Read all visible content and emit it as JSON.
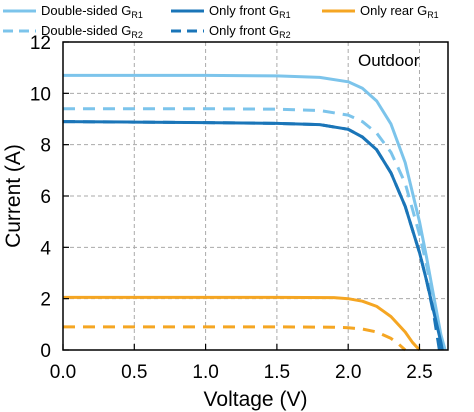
{
  "chart_data": {
    "type": "line",
    "xlabel": "Voltage (V)",
    "ylabel": "Current (A)",
    "xlim": [
      0,
      2.7
    ],
    "ylim": [
      0,
      12
    ],
    "xticks": [
      "0.0",
      "0.5",
      "1.0",
      "1.5",
      "2.0",
      "2.5"
    ],
    "yticks": [
      "0",
      "2",
      "4",
      "6",
      "8",
      "10",
      "12"
    ],
    "grid": true,
    "annotation": "Outdoor",
    "legend": {
      "placement": "top",
      "entries": [
        {
          "prefix": "Double-sided G",
          "sub": "R1"
        },
        {
          "prefix": "Only front G",
          "sub": "R1"
        },
        {
          "prefix": "Only rear G",
          "sub": "R1"
        },
        {
          "prefix": "Double-sided G",
          "sub": "R2"
        },
        {
          "prefix": "Only front G",
          "sub": "R2"
        }
      ]
    },
    "series": [
      {
        "legend_index": 0,
        "color": "#7cc4eb",
        "style": "solid",
        "x": [
          0,
          0.5,
          1.0,
          1.5,
          1.8,
          2.0,
          2.1,
          2.2,
          2.3,
          2.4,
          2.5,
          2.55,
          2.6,
          2.65,
          2.68
        ],
        "y": [
          10.7,
          10.7,
          10.7,
          10.68,
          10.62,
          10.45,
          10.2,
          9.7,
          8.8,
          7.3,
          5.0,
          3.6,
          2.1,
          0.6,
          0
        ]
      },
      {
        "legend_index": 3,
        "color": "#7cc4eb",
        "style": "dashed",
        "x": [
          0,
          0.5,
          1.0,
          1.5,
          1.8,
          2.0,
          2.1,
          2.2,
          2.3,
          2.4,
          2.5,
          2.55,
          2.6,
          2.65,
          2.67
        ],
        "y": [
          9.4,
          9.4,
          9.4,
          9.38,
          9.33,
          9.15,
          8.9,
          8.45,
          7.7,
          6.5,
          4.5,
          3.3,
          1.9,
          0.5,
          0
        ]
      },
      {
        "legend_index": 1,
        "color": "#1a75b8",
        "style": "solid",
        "x": [
          0,
          0.5,
          1.0,
          1.5,
          1.8,
          2.0,
          2.1,
          2.2,
          2.3,
          2.4,
          2.5,
          2.55,
          2.6,
          2.65,
          2.66
        ],
        "y": [
          8.9,
          8.88,
          8.86,
          8.83,
          8.78,
          8.6,
          8.3,
          7.8,
          6.9,
          5.6,
          3.8,
          2.7,
          1.5,
          0.3,
          0
        ]
      },
      {
        "legend_index": 4,
        "color": "#1a75b8",
        "style": "dashed",
        "x": [
          0,
          0.5,
          1.0,
          1.5,
          1.8,
          2.0,
          2.1,
          2.2,
          2.3,
          2.4,
          2.5,
          2.55,
          2.6,
          2.64
        ],
        "y": [
          8.9,
          8.88,
          8.86,
          8.83,
          8.78,
          8.6,
          8.3,
          7.8,
          6.9,
          5.6,
          3.8,
          2.7,
          1.4,
          0
        ]
      },
      {
        "legend_index": 2,
        "color": "#f5a623",
        "style": "solid",
        "x": [
          0,
          0.5,
          1.0,
          1.5,
          1.9,
          2.0,
          2.1,
          2.2,
          2.3,
          2.4,
          2.45,
          2.5
        ],
        "y": [
          2.05,
          2.05,
          2.05,
          2.05,
          2.04,
          2.0,
          1.9,
          1.7,
          1.3,
          0.7,
          0.3,
          0
        ]
      },
      {
        "legend_index": -1,
        "color": "#f5a623",
        "style": "dashed",
        "x": [
          0,
          0.5,
          1.0,
          1.5,
          1.9,
          2.0,
          2.1,
          2.2,
          2.3,
          2.35,
          2.4
        ],
        "y": [
          0.9,
          0.9,
          0.9,
          0.9,
          0.89,
          0.87,
          0.82,
          0.7,
          0.45,
          0.25,
          0
        ]
      }
    ]
  }
}
